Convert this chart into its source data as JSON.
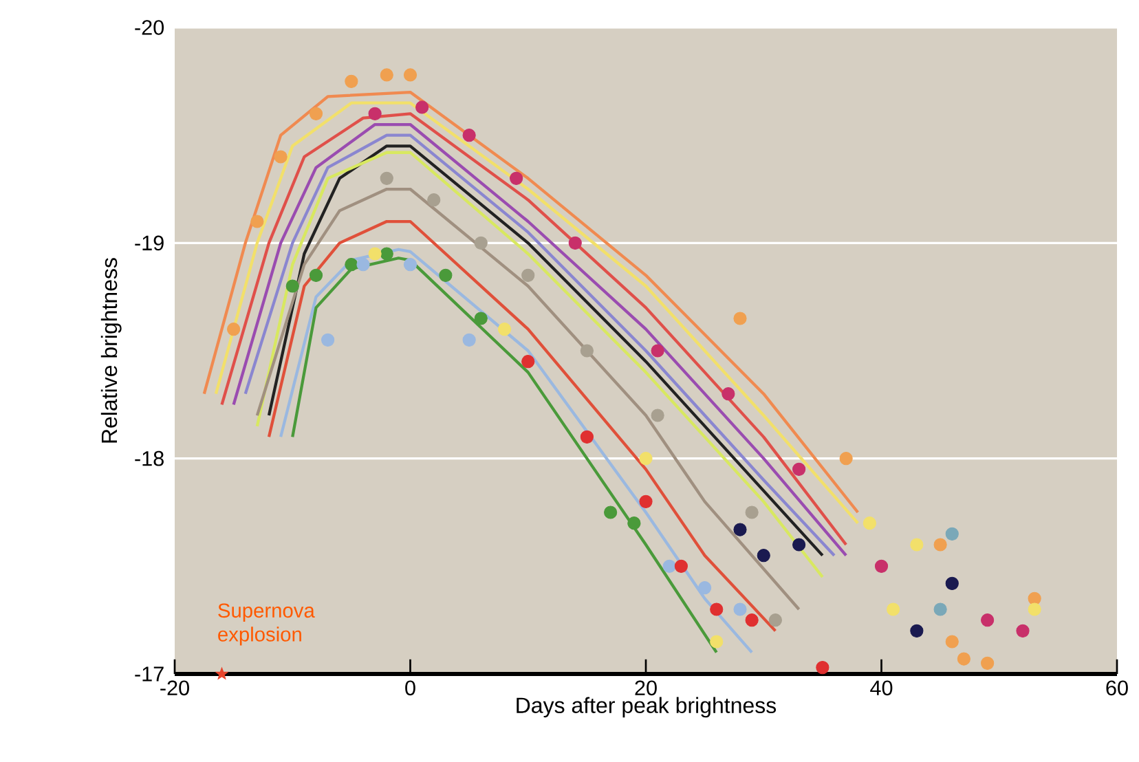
{
  "chart_data": {
    "type": "line",
    "xlabel": "Days after peak brightness",
    "ylabel": "Relative brightness",
    "xlim": [
      -20,
      60
    ],
    "ylim": [
      -17,
      -20
    ],
    "xticks": [
      -20,
      0,
      20,
      40,
      60
    ],
    "yticks": [
      -20,
      -19,
      -18,
      -17
    ],
    "grid": "y",
    "annotations": [
      {
        "text": "Supernova explosion",
        "x": -16,
        "y": -17
      }
    ],
    "series": [
      {
        "color": "#f08a50",
        "x": [
          -17.5,
          -14,
          -11,
          -7,
          0,
          5,
          10,
          20,
          30,
          38
        ],
        "values": [
          -18.3,
          -19.0,
          -19.5,
          -19.68,
          -19.7,
          -19.5,
          -19.3,
          -18.85,
          -18.3,
          -17.75
        ]
      },
      {
        "color": "#f2e06a",
        "x": [
          -16.5,
          -13,
          -10,
          -5,
          0,
          10,
          20,
          30,
          38
        ],
        "values": [
          -18.3,
          -19.0,
          -19.45,
          -19.65,
          -19.65,
          -19.25,
          -18.8,
          -18.2,
          -17.7
        ]
      },
      {
        "color": "#e0504a",
        "x": [
          -16,
          -12,
          -9,
          -4,
          0,
          10,
          20,
          30,
          37
        ],
        "values": [
          -18.25,
          -19.0,
          -19.4,
          -19.58,
          -19.6,
          -19.2,
          -18.7,
          -18.1,
          -17.6
        ]
      },
      {
        "color": "#9a4cb0",
        "x": [
          -15,
          -11,
          -8,
          -3,
          0,
          10,
          20,
          30,
          37
        ],
        "values": [
          -18.25,
          -19.0,
          -19.35,
          -19.55,
          -19.55,
          -19.1,
          -18.6,
          -18.0,
          -17.55
        ]
      },
      {
        "color": "#8a86d0",
        "x": [
          -14,
          -10,
          -7,
          -2,
          0,
          10,
          20,
          30,
          36
        ],
        "values": [
          -18.3,
          -19.0,
          -19.35,
          -19.5,
          -19.5,
          -19.05,
          -18.5,
          -17.9,
          -17.55
        ]
      },
      {
        "color": "#222222",
        "x": [
          -12,
          -9,
          -6,
          -2,
          0,
          10,
          20,
          30,
          35
        ],
        "values": [
          -18.2,
          -18.95,
          -19.3,
          -19.45,
          -19.45,
          -19.0,
          -18.45,
          -17.85,
          -17.55
        ]
      },
      {
        "color": "#d8e860",
        "x": [
          -13,
          -10,
          -7,
          -2,
          0,
          10,
          20,
          30,
          35
        ],
        "values": [
          -18.15,
          -18.9,
          -19.3,
          -19.42,
          -19.42,
          -18.95,
          -18.4,
          -17.8,
          -17.45
        ]
      },
      {
        "color": "#a09080",
        "x": [
          -13,
          -9,
          -6,
          -2,
          0,
          10,
          20,
          25,
          33
        ],
        "values": [
          -18.2,
          -18.9,
          -19.15,
          -19.25,
          -19.25,
          -18.8,
          -18.2,
          -17.8,
          -17.3
        ]
      },
      {
        "color": "#e0503a",
        "x": [
          -12,
          -9,
          -6,
          -2,
          0,
          10,
          20,
          25,
          31
        ],
        "values": [
          -18.1,
          -18.8,
          -19.0,
          -19.1,
          -19.1,
          -18.6,
          -17.95,
          -17.55,
          -17.2
        ]
      },
      {
        "color": "#9ab8e0",
        "x": [
          -11,
          -8,
          -5,
          -1,
          0,
          10,
          20,
          25,
          29
        ],
        "values": [
          -18.1,
          -18.75,
          -18.92,
          -18.97,
          -18.96,
          -18.5,
          -17.75,
          -17.35,
          -17.1
        ]
      },
      {
        "color": "#4a9a3a",
        "x": [
          -10,
          -8,
          -5,
          -1,
          0,
          10,
          20,
          26
        ],
        "values": [
          -18.1,
          -18.7,
          -18.88,
          -18.93,
          -18.92,
          -18.4,
          -17.6,
          -17.1
        ]
      },
      {
        "type": "scatter",
        "color": "#f0a050",
        "x": [
          -15,
          -13,
          -11,
          -8,
          -5,
          -2,
          0,
          28,
          37,
          45,
          46,
          47,
          49,
          53
        ],
        "values": [
          -18.6,
          -19.1,
          -19.4,
          -19.6,
          -19.75,
          -19.78,
          -19.78,
          -18.65,
          -18.0,
          -17.6,
          -17.15,
          -17.07,
          -17.05,
          -17.35
        ]
      },
      {
        "type": "scatter",
        "color": "#c8306a",
        "x": [
          -3,
          1,
          5,
          9,
          14,
          21,
          27,
          33,
          40,
          49,
          52
        ],
        "values": [
          -19.6,
          -19.63,
          -19.5,
          -19.3,
          -19.0,
          -18.5,
          -18.3,
          -17.95,
          -17.5,
          -17.25,
          -17.2
        ]
      },
      {
        "type": "scatter",
        "color": "#a8a090",
        "x": [
          -2,
          2,
          6,
          10,
          15,
          21,
          29,
          31
        ],
        "values": [
          -19.3,
          -19.2,
          -19.0,
          -18.85,
          -18.5,
          -18.2,
          -17.75,
          -17.25
        ]
      },
      {
        "type": "scatter",
        "color": "#4a9a3a",
        "x": [
          -10,
          -8,
          -5,
          -2,
          3,
          6,
          17,
          19
        ],
        "values": [
          -18.8,
          -18.85,
          -18.9,
          -18.95,
          -18.85,
          -18.65,
          -17.75,
          -17.7
        ]
      },
      {
        "type": "scatter",
        "color": "#9ab8e0",
        "x": [
          -7,
          -4,
          0,
          5,
          22,
          25,
          28
        ],
        "values": [
          -18.55,
          -18.9,
          -18.9,
          -18.55,
          -17.5,
          -17.4,
          -17.3
        ]
      },
      {
        "type": "scatter",
        "color": "#1a1a50",
        "x": [
          28,
          30,
          33,
          43,
          46
        ],
        "values": [
          -17.67,
          -17.55,
          -17.6,
          -17.2,
          -17.42
        ]
      },
      {
        "type": "scatter",
        "color": "#f2e06a",
        "x": [
          -3,
          8,
          20,
          26,
          39,
          41,
          43,
          53
        ],
        "values": [
          -18.95,
          -18.6,
          -18.0,
          -17.15,
          -17.7,
          -17.3,
          -17.6,
          -17.3
        ]
      },
      {
        "type": "scatter",
        "color": "#e03030",
        "x": [
          10,
          15,
          20,
          23,
          26,
          29,
          35
        ],
        "values": [
          -18.45,
          -18.1,
          -17.8,
          -17.5,
          -17.3,
          -17.25,
          -17.03
        ]
      },
      {
        "type": "scatter",
        "color": "#7aa8b8",
        "x": [
          45,
          46
        ],
        "values": [
          -17.3,
          -17.65
        ]
      },
      {
        "type": "scatter",
        "color": "#e8452c",
        "marker": "star",
        "x": [
          -16
        ],
        "values": [
          -17
        ]
      }
    ]
  }
}
